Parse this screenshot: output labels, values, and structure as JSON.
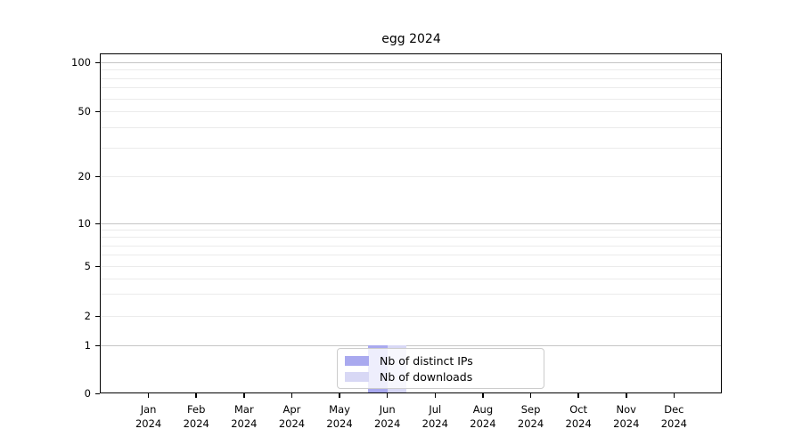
{
  "figure": {
    "title": "egg 2024"
  },
  "legend": {
    "items": [
      {
        "label": "Nb of distinct IPs",
        "color": "#a9a9ef"
      },
      {
        "label": "Nb of downloads",
        "color": "#d8d8f5"
      }
    ]
  },
  "chart_data": {
    "type": "bar",
    "title": "egg 2024",
    "categories": [
      "Jan 2024",
      "Feb 2024",
      "Mar 2024",
      "Apr 2024",
      "May 2024",
      "Jun 2024",
      "Jul 2024",
      "Aug 2024",
      "Sep 2024",
      "Oct 2024",
      "Nov 2024",
      "Dec 2024"
    ],
    "series": [
      {
        "name": "Nb of distinct IPs",
        "color": "#a9a9ef",
        "values": [
          0,
          0,
          0,
          0,
          0,
          1,
          0,
          0,
          0,
          0,
          0,
          0
        ]
      },
      {
        "name": "Nb of downloads",
        "color": "#d8d8f5",
        "values": [
          0,
          0,
          0,
          0,
          0,
          1,
          0,
          0,
          0,
          0,
          0,
          0
        ]
      }
    ],
    "xlabel": "",
    "ylabel": "",
    "y_tick_values": [
      0,
      1,
      2,
      5,
      10,
      20,
      50,
      100
    ],
    "y_major_gridlines": [
      1,
      10,
      100
    ],
    "y_minor_gridlines": [
      2,
      3,
      4,
      5,
      6,
      7,
      8,
      9,
      20,
      30,
      40,
      50,
      60,
      70,
      80,
      90
    ],
    "ylim": [
      0,
      110
    ],
    "yscale": "log (with 0 baseline)",
    "grid": true,
    "legend_position": "lower center"
  }
}
